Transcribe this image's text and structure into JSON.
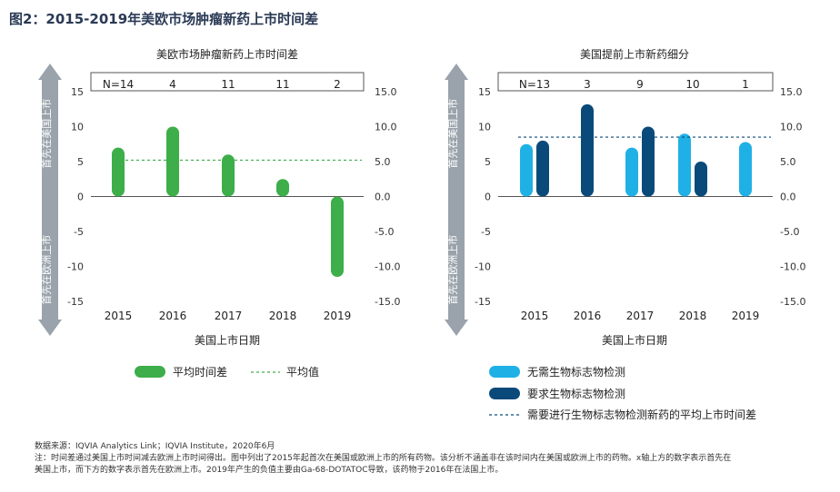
{
  "figure_title": "图2：2015-2019年美欧市场肿瘤新药上市时间差",
  "notes": {
    "source": "数据来源：IQVIA Analytics Link；IQVIA Institute，2020年6月",
    "line1": "注：时间差通过美国上市时间减去欧洲上市时间得出。图中列出了2015年起首次在美国或欧洲上市的所有药物。该分析不涵盖非在该时间内在美国或欧洲上市的药物。x轴上方的数字表示首先在",
    "line2": "美国上市，而下方的数字表示首先在欧洲上市。2019年产生的负值主要由Ga-68-DOTATOC导致，该药物于2016年在法国上市。"
  },
  "colors": {
    "green": "#3dae49",
    "light_blue": "#1fb1e6",
    "dark_blue": "#0a4a7a",
    "arrow": "#9aa3ab",
    "axis": "#555555"
  },
  "chart_data": [
    {
      "type": "bar",
      "title": "美欧市场肿瘤新药上市时间差",
      "categories": [
        "2015",
        "2016",
        "2017",
        "2018",
        "2019"
      ],
      "xlabel": "美国上市日期",
      "ylim": [
        -15,
        15
      ],
      "yticks_left": [
        "15",
        "10",
        "5",
        "0",
        "-5",
        "-10",
        "-15"
      ],
      "yticks_right": [
        "15.0",
        "10.0",
        "5.0",
        "0.0",
        "-5.0",
        "-10.0",
        "-15.0"
      ],
      "arrow_up_label": "首先在美国上市",
      "arrow_down_label": "首先在欧洲上市",
      "counts": [
        "N=14",
        "4",
        "11",
        "11",
        "2"
      ],
      "series": [
        {
          "name": "平均时间差",
          "values": [
            7,
            10,
            6,
            2.5,
            -11.5
          ]
        }
      ],
      "average_line": {
        "name": "平均值",
        "value": 5.2
      },
      "legend": {
        "bar": "平均时间差",
        "line": "平均值"
      }
    },
    {
      "type": "bar",
      "title": "美国提前上市新药细分",
      "categories": [
        "2015",
        "2016",
        "2017",
        "2018",
        "2019"
      ],
      "xlabel": "美国上市日期",
      "ylim": [
        -15,
        15
      ],
      "yticks_left": [
        "15",
        "10",
        "5",
        "0",
        "-5",
        "-10",
        "-15"
      ],
      "yticks_right": [
        "15.0",
        "10.0",
        "5.0",
        "0.0",
        "-5.0",
        "-10.0",
        "-15.0"
      ],
      "arrow_up_label": "首先在美国上市",
      "arrow_down_label": "首先在欧洲上市",
      "counts": [
        "N=13",
        "3",
        "9",
        "10",
        "1"
      ],
      "series": [
        {
          "name": "无需生物标志物检测",
          "values": [
            7.5,
            null,
            7,
            9,
            7.8
          ]
        },
        {
          "name": "要求生物标志物检测",
          "values": [
            8,
            13.2,
            10,
            5,
            null
          ]
        }
      ],
      "average_line": {
        "name": "需要进行生物标志物检测新药的平均上市时间差",
        "value": 8.5
      },
      "legend": {
        "series1": "无需生物标志物检测",
        "series2": "要求生物标志物检测",
        "line": "需要进行生物标志物检测新药的平均上市时间差"
      }
    }
  ]
}
